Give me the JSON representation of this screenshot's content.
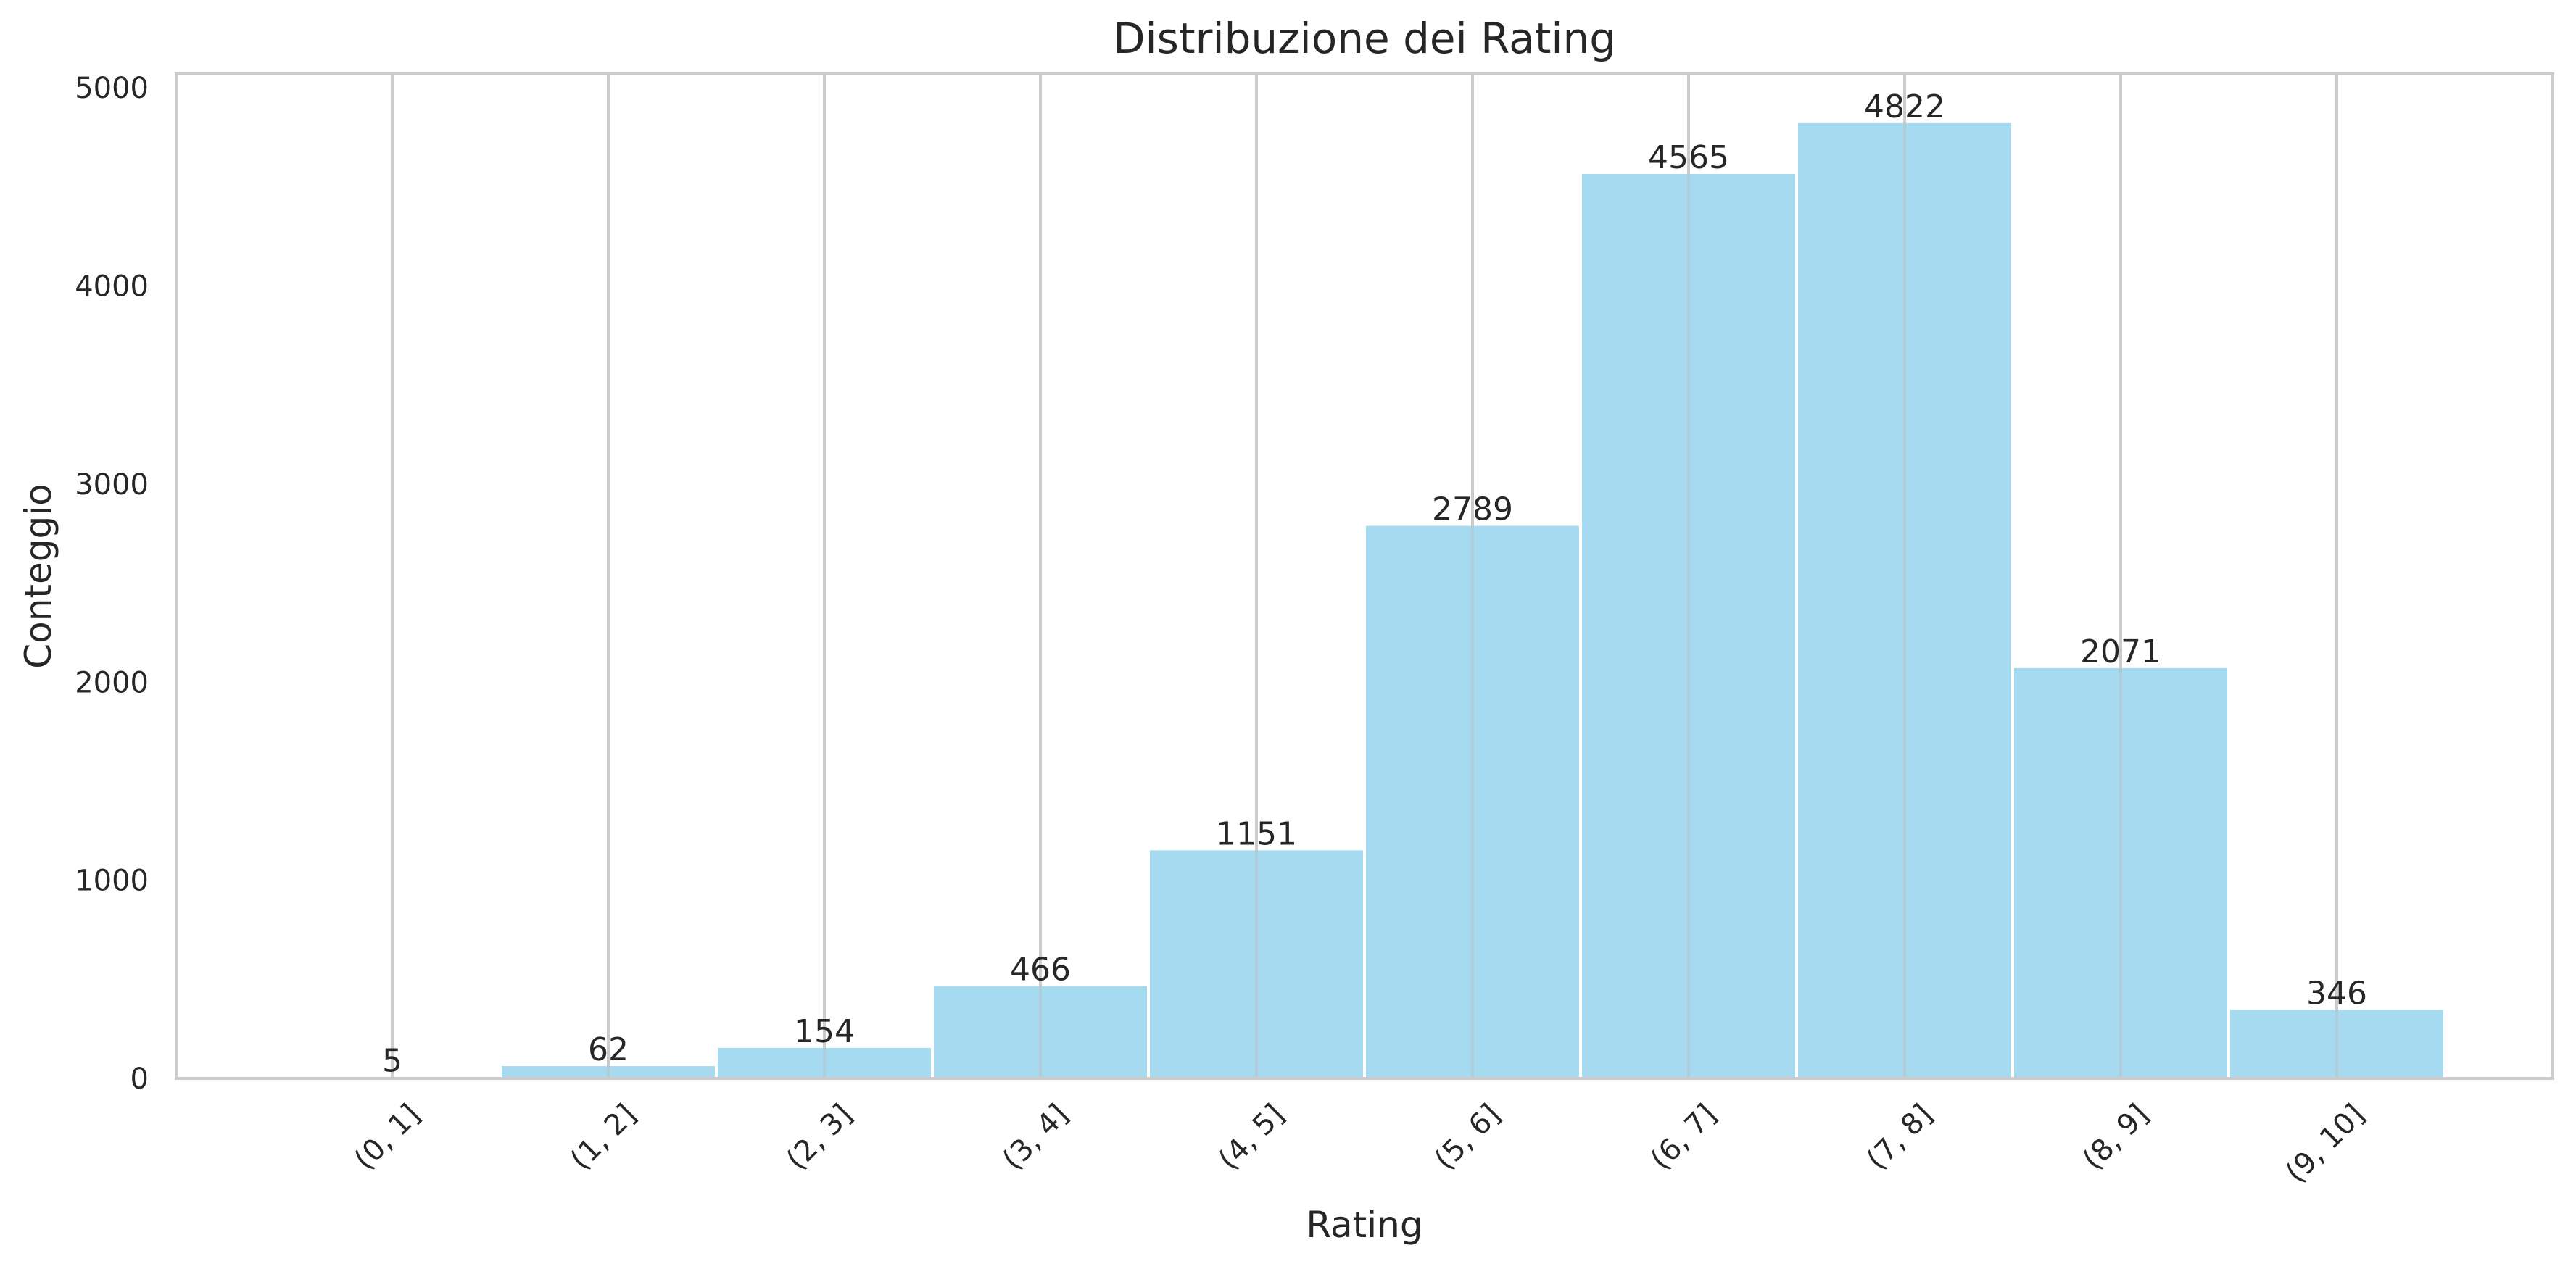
{
  "chart_data": {
    "type": "bar",
    "title": "Distribuzione dei Rating",
    "xlabel": "Rating",
    "ylabel": "Conteggio",
    "categories": [
      "(0, 1]",
      "(1, 2]",
      "(2, 3]",
      "(3, 4]",
      "(4, 5]",
      "(5, 6]",
      "(6, 7]",
      "(7, 8]",
      "(8, 9]",
      "(9, 10]"
    ],
    "values": [
      5,
      62,
      154,
      466,
      1151,
      2789,
      4565,
      4822,
      2071,
      346
    ],
    "y_ticks": [
      0,
      1000,
      2000,
      3000,
      4000,
      5000
    ],
    "ylim": [
      0,
      5070
    ],
    "grid": "vertical",
    "colors": {
      "bar": "#87CEEB",
      "grid": "#cccccc",
      "frame": "#cccccc",
      "text": "#262626"
    }
  }
}
